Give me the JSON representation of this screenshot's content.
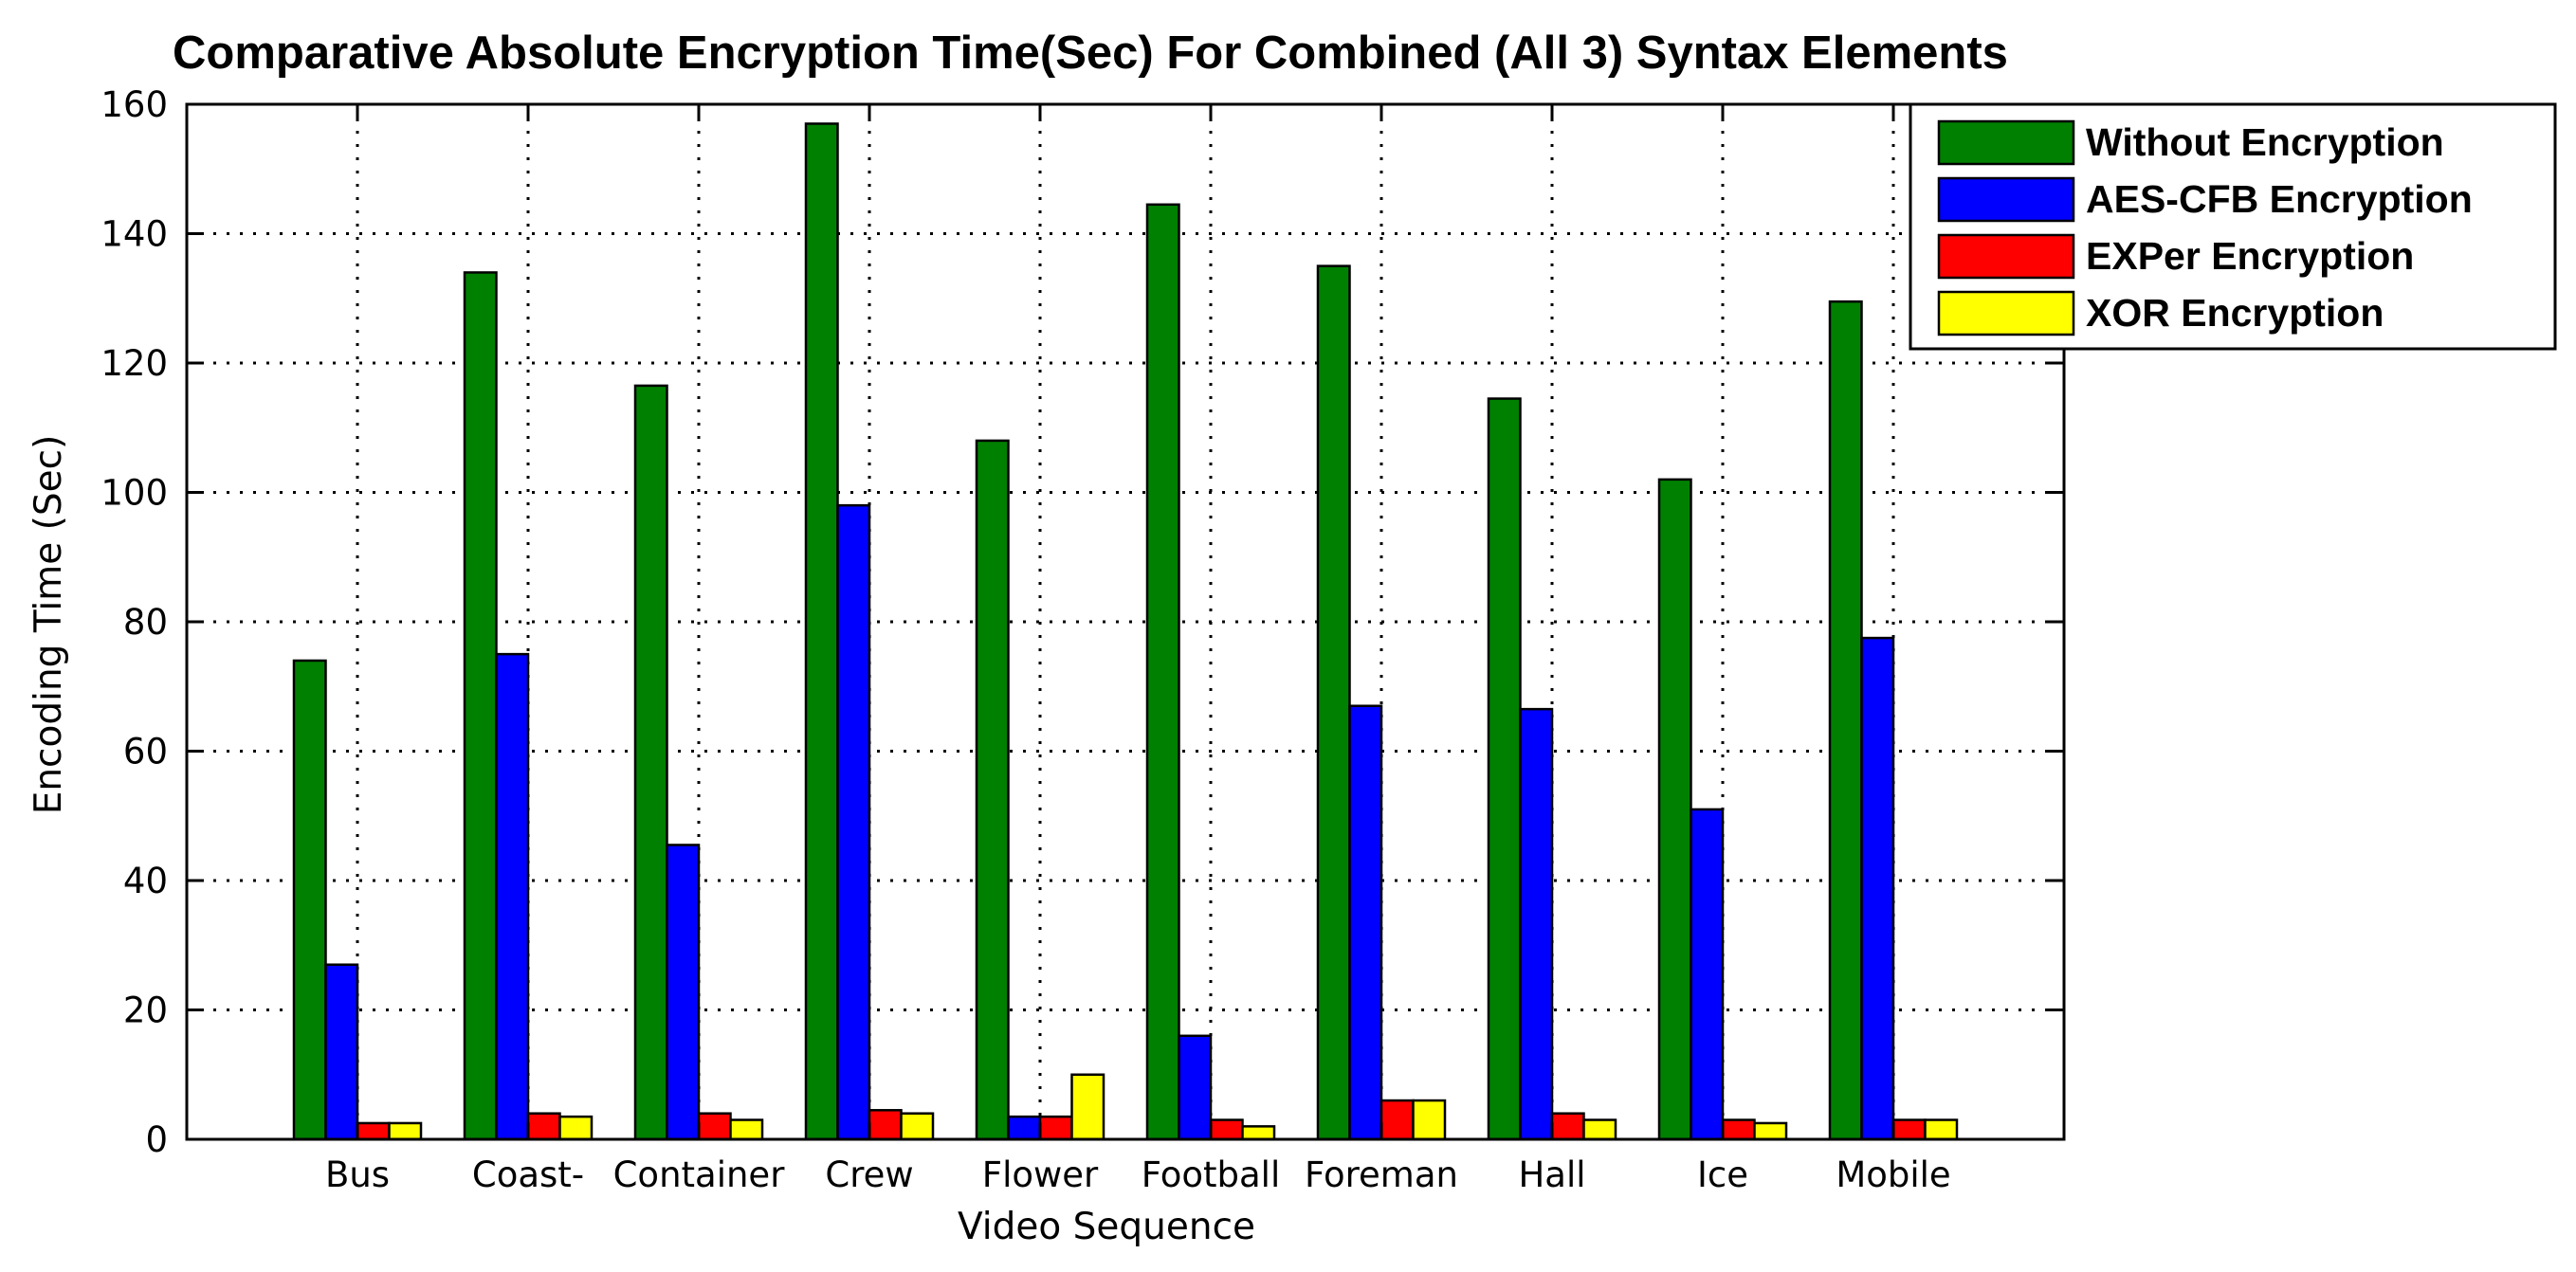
{
  "chart_data": {
    "type": "bar",
    "title": "Comparative Absolute Encryption Time(Sec) For Combined (All 3) Syntax Elements",
    "xlabel": "Video Sequence",
    "ylabel": "Encoding Time (Sec)",
    "ylim": [
      0,
      160
    ],
    "yticks": [
      "0",
      "20",
      "40",
      "60",
      "80",
      "100",
      "120",
      "140",
      "160"
    ],
    "grid": true,
    "legend_position": "top-right",
    "categories": [
      "Bus",
      "Coast-",
      "Container",
      "Crew",
      "Flower",
      "Football",
      "Foreman",
      "Hall",
      "Ice",
      "Mobile"
    ],
    "series": [
      {
        "name": "Without Encryption",
        "color": "#008000",
        "values": [
          74,
          134,
          116.5,
          157,
          108,
          144.5,
          135,
          114.5,
          102,
          129.5
        ]
      },
      {
        "name": "AES-CFB Encryption",
        "color": "#0000ff",
        "values": [
          27,
          75,
          45.5,
          98,
          3.5,
          16,
          67,
          66.5,
          51,
          77.5
        ]
      },
      {
        "name": "EXPer Encryption",
        "color": "#ff0000",
        "values": [
          2.5,
          4,
          4,
          4.5,
          3.5,
          3,
          6,
          4,
          3,
          3
        ]
      },
      {
        "name": "XOR Encryption",
        "color": "#ffff00",
        "values": [
          2.5,
          3.5,
          3,
          4,
          10,
          2,
          6,
          3,
          2.5,
          3
        ]
      }
    ]
  }
}
